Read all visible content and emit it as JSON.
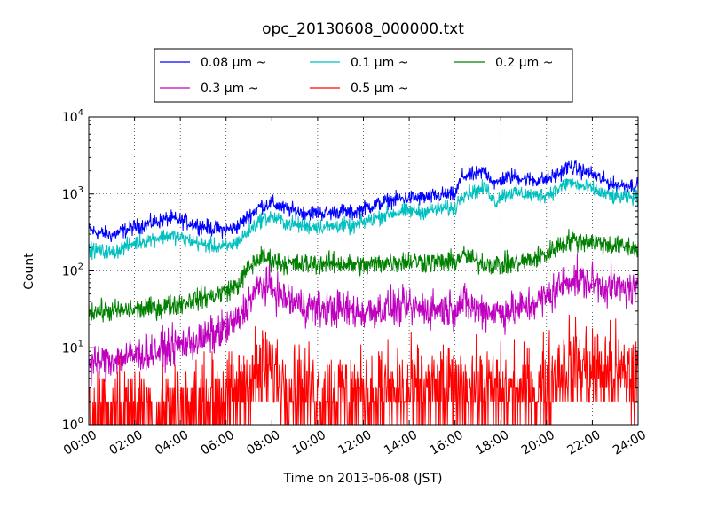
{
  "chart_data": {
    "type": "line",
    "title": "opc_20130608_000000.txt",
    "xlabel": "Time on 2013-06-08 (JST)",
    "ylabel": "Count",
    "x_unit": "hours",
    "xlim": [
      0,
      24
    ],
    "ylim": [
      1,
      10000
    ],
    "yscale": "log",
    "grid": true,
    "legend_position": "top-center",
    "x_tick_labels": [
      "00:00",
      "02:00",
      "04:00",
      "06:00",
      "08:00",
      "10:00",
      "12:00",
      "14:00",
      "16:00",
      "18:00",
      "20:00",
      "22:00",
      "24:00"
    ],
    "y_ticks": [
      {
        "base": "10",
        "exp": "0",
        "value": 1
      },
      {
        "base": "10",
        "exp": "1",
        "value": 10
      },
      {
        "base": "10",
        "exp": "2",
        "value": 100
      },
      {
        "base": "10",
        "exp": "3",
        "value": 1000
      },
      {
        "base": "10",
        "exp": "4",
        "value": 10000
      }
    ],
    "series": [
      {
        "name": "0.08 μm ~",
        "color": "#0000ff",
        "noise": 0.05,
        "x": [
          0,
          0.5,
          1,
          1.5,
          2,
          3,
          3.5,
          4,
          5,
          5.5,
          6,
          6.5,
          7,
          7.5,
          8,
          8.5,
          9,
          9.5,
          10,
          10.5,
          11,
          11.5,
          12,
          12.5,
          13,
          13.5,
          14,
          14.5,
          15,
          15.5,
          16,
          16.3,
          17,
          17.3,
          17.5,
          17.8,
          18,
          18.5,
          19,
          19.5,
          20,
          20.5,
          21,
          21.5,
          22,
          22.5,
          23,
          24
        ],
        "y": [
          340,
          310,
          290,
          330,
          370,
          440,
          480,
          450,
          380,
          350,
          340,
          380,
          520,
          700,
          760,
          650,
          600,
          580,
          570,
          560,
          600,
          560,
          650,
          720,
          800,
          850,
          900,
          880,
          920,
          980,
          960,
          1700,
          1800,
          2000,
          1700,
          1300,
          1550,
          1700,
          1600,
          1500,
          1550,
          1800,
          2300,
          2000,
          1800,
          1500,
          1300,
          1300
        ]
      },
      {
        "name": "0.1 μm ~",
        "color": "#00bfbf",
        "noise": 0.05,
        "x": [
          0,
          0.5,
          1,
          1.5,
          2,
          3,
          3.5,
          4,
          5,
          5.5,
          6,
          6.5,
          7,
          7.5,
          8,
          8.5,
          9,
          9.5,
          10,
          10.5,
          11,
          11.5,
          12,
          12.5,
          13,
          13.5,
          14,
          14.5,
          15,
          15.5,
          16,
          16.3,
          17,
          17.3,
          17.5,
          17.8,
          18,
          18.5,
          19,
          19.5,
          20,
          20.5,
          21,
          21.5,
          22,
          22.5,
          23,
          24
        ],
        "y": [
          190,
          180,
          170,
          200,
          230,
          270,
          290,
          270,
          220,
          210,
          200,
          240,
          330,
          460,
          500,
          430,
          400,
          380,
          380,
          370,
          400,
          370,
          430,
          480,
          540,
          580,
          600,
          590,
          620,
          650,
          640,
          1000,
          1100,
          1200,
          1050,
          780,
          950,
          1050,
          1000,
          950,
          980,
          1150,
          1450,
          1250,
          1150,
          1000,
          900,
          900
        ]
      },
      {
        "name": "0.2 μm ~",
        "color": "#008000",
        "noise": 0.07,
        "x": [
          0,
          1,
          2,
          3,
          4,
          5,
          5.5,
          6,
          6.5,
          7,
          7.5,
          8,
          8.5,
          9,
          10,
          11,
          12,
          13,
          14,
          15,
          16,
          16.3,
          17,
          18,
          19,
          20,
          20.5,
          21,
          22,
          23,
          24
        ],
        "y": [
          30,
          30,
          31,
          33,
          38,
          45,
          48,
          55,
          65,
          110,
          150,
          140,
          125,
          120,
          125,
          125,
          115,
          130,
          135,
          130,
          130,
          160,
          130,
          120,
          130,
          165,
          210,
          250,
          240,
          210,
          195
        ]
      },
      {
        "name": "0.3 μm ~",
        "color": "#bf00bf",
        "noise": 0.12,
        "x": [
          0,
          1,
          2,
          3,
          4,
          5,
          5.5,
          6,
          6.5,
          7,
          7.5,
          8,
          8.5,
          9,
          10,
          11,
          12,
          13,
          14,
          15,
          16,
          16.3,
          17,
          18,
          19,
          20,
          20.5,
          21,
          22,
          23,
          24
        ],
        "y": [
          6,
          7,
          8,
          9,
          11,
          13,
          15,
          18,
          22,
          40,
          65,
          62,
          45,
          38,
          32,
          32,
          29,
          33,
          33,
          32,
          33,
          40,
          32,
          29,
          33,
          45,
          60,
          80,
          70,
          60,
          55
        ]
      },
      {
        "name": "0.5 μm ~",
        "color": "#ff0000",
        "noise": 0.3,
        "x": [
          0,
          2,
          4,
          5,
          6,
          6.5,
          7,
          8,
          8.5,
          9,
          10,
          12,
          14,
          16,
          16.3,
          17,
          18,
          19,
          20,
          20.5,
          21,
          22,
          23,
          24
        ],
        "y": [
          1.5,
          1.5,
          1.6,
          1.7,
          2,
          2.5,
          4,
          5,
          3.5,
          3,
          2.5,
          2.5,
          2.5,
          2.8,
          3.2,
          2.7,
          2.5,
          2.5,
          3,
          5,
          6,
          5,
          4.5,
          4
        ]
      }
    ]
  }
}
